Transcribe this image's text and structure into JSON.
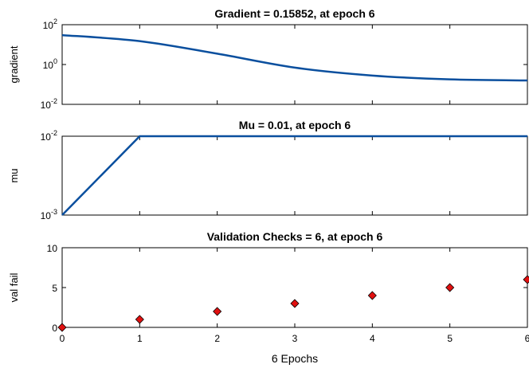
{
  "chart_data": [
    {
      "type": "line",
      "title": "Gradient = 0.15852, at epoch 6",
      "xlabel": "",
      "ylabel": "gradient",
      "yscale": "log",
      "ylim": [
        0.01,
        100
      ],
      "yticks": [
        {
          "value": 0.01,
          "base": "10",
          "exp": "-2"
        },
        {
          "value": 1,
          "base": "10",
          "exp": "0"
        },
        {
          "value": 100,
          "base": "10",
          "exp": "2"
        }
      ],
      "xlim": [
        0,
        6
      ],
      "xticks": [
        0,
        1,
        2,
        3,
        4,
        5,
        6
      ],
      "show_xtick_labels": false,
      "grid": false,
      "line_color": "#0a4f9e",
      "x": [
        0,
        1,
        2,
        3,
        4,
        5,
        6
      ],
      "y": [
        30,
        15,
        3.5,
        0.7,
        0.28,
        0.18,
        0.15852
      ]
    },
    {
      "type": "line",
      "title": "Mu = 0.01, at epoch 6",
      "xlabel": "",
      "ylabel": "mu",
      "yscale": "log",
      "ylim": [
        0.001,
        0.01
      ],
      "yticks": [
        {
          "value": 0.001,
          "base": "10",
          "exp": "-3"
        },
        {
          "value": 0.01,
          "base": "10",
          "exp": "-2"
        }
      ],
      "xlim": [
        0,
        6
      ],
      "xticks": [
        0,
        1,
        2,
        3,
        4,
        5,
        6
      ],
      "show_xtick_labels": false,
      "grid": false,
      "line_color": "#0a4f9e",
      "x": [
        0,
        1,
        2,
        3,
        4,
        5,
        6
      ],
      "y": [
        0.001,
        0.01,
        0.01,
        0.01,
        0.01,
        0.01,
        0.01
      ]
    },
    {
      "type": "scatter",
      "title": "Validation Checks = 6, at epoch 6",
      "xlabel": "6 Epochs",
      "ylabel": "val fail",
      "yscale": "linear",
      "ylim": [
        0,
        10
      ],
      "yticks": [
        {
          "value": 0,
          "label": "0"
        },
        {
          "value": 5,
          "label": "5"
        },
        {
          "value": 10,
          "label": "10"
        }
      ],
      "xlim": [
        0,
        6
      ],
      "xticks": [
        0,
        1,
        2,
        3,
        4,
        5,
        6
      ],
      "show_xtick_labels": true,
      "grid": false,
      "marker": "diamond",
      "marker_color": "#e01010",
      "x": [
        0,
        1,
        2,
        3,
        4,
        5,
        6
      ],
      "y": [
        0,
        1,
        2,
        3,
        4,
        5,
        6
      ]
    }
  ]
}
